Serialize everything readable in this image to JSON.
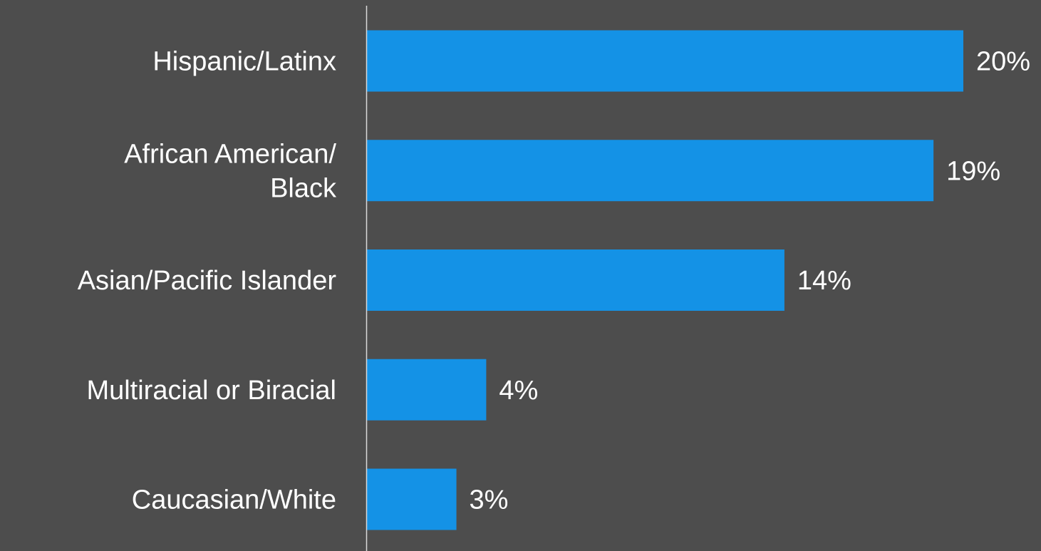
{
  "colors": {
    "background": "#4d4d4d",
    "bar": "#1492e6",
    "axis": "#d9d9d9",
    "text": "#ffffff"
  },
  "chart_data": {
    "type": "bar",
    "orientation": "horizontal",
    "categories": [
      "Hispanic/Latinx",
      "African American/ Black",
      "Asian/Pacific Islander",
      "Multiracial or Biracial",
      "Caucasian/White"
    ],
    "category_lines": [
      [
        "Hispanic/Latinx"
      ],
      [
        "African American/",
        "Black"
      ],
      [
        "Asian/Pacific Islander"
      ],
      [
        "Multiracial or Biracial"
      ],
      [
        "Caucasian/White"
      ]
    ],
    "values": [
      20,
      19,
      14,
      4,
      3
    ],
    "data_labels": [
      "20%",
      "19%",
      "14%",
      "4%",
      "3%"
    ],
    "unit": "%",
    "xlim": [
      0,
      20
    ],
    "grid": false,
    "legend": "none"
  }
}
